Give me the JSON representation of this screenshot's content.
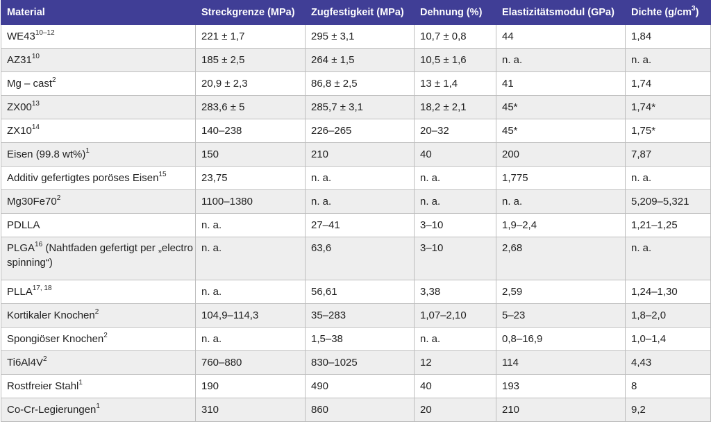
{
  "headers": [
    {
      "text": "Material",
      "sup": ""
    },
    {
      "text": "Streckgrenze (MPa)",
      "sup": ""
    },
    {
      "text": "Zugfestigkeit (MPa)",
      "sup": ""
    },
    {
      "text": "Dehnung (%)",
      "sup": ""
    },
    {
      "text": "Elastizitätsmodul (GPa)",
      "sup": ""
    },
    {
      "text": "Dichte (g/cm",
      "sup": "3",
      "after": ")"
    }
  ],
  "rows": [
    {
      "material": "WE43",
      "sup": "10–12",
      "extra": "",
      "cells": [
        "221 ± 1,7",
        "295 ± 3,1",
        "10,7 ± 0,8",
        "44",
        "1,84"
      ]
    },
    {
      "material": "AZ31",
      "sup": "10",
      "extra": "",
      "cells": [
        "185 ± 2,5",
        "264 ± 1,5",
        "10,5 ± 1,6",
        "n. a.",
        "n. a."
      ]
    },
    {
      "material": "Mg – cast",
      "sup": "2",
      "extra": "",
      "cells": [
        "20,9 ± 2,3",
        "86,8 ± 2,5",
        "13 ± 1,4",
        "41",
        "1,74"
      ]
    },
    {
      "material": "ZX00",
      "sup": "13",
      "extra": "",
      "cells": [
        "283,6 ± 5",
        "285,7 ± 3,1",
        "18,2 ± 2,1",
        "45*",
        "1,74*"
      ]
    },
    {
      "material": "ZX10",
      "sup": "14",
      "extra": "",
      "cells": [
        "140–238",
        "226–265",
        "20–32",
        "45*",
        "1,75*"
      ]
    },
    {
      "material": "Eisen (99.8 wt%)",
      "sup": "1",
      "extra": "",
      "cells": [
        "150",
        "210",
        "40",
        "200",
        "7,87"
      ]
    },
    {
      "material": "Additiv gefertigtes poröses Eisen",
      "sup": "15",
      "extra": "",
      "cells": [
        "23,75",
        "n. a.",
        "n. a.",
        "1,775",
        "n. a."
      ]
    },
    {
      "material": "Mg30Fe70",
      "sup": "2",
      "extra": "",
      "cells": [
        "1100–1380",
        "n. a.",
        "n. a.",
        "n. a.",
        "5,209–5,321"
      ]
    },
    {
      "material": "PDLLA",
      "sup": "",
      "extra": "",
      "cells": [
        "n. a.",
        "27–41",
        "3–10",
        "1,9–2,4",
        "1,21–1,25"
      ]
    },
    {
      "material": "PLGA",
      "sup": "16",
      "extra": " (Nahtfaden gefertigt per „electro spinning“)",
      "cells": [
        "n. a.",
        "63,6",
        "3–10",
        "2,68",
        "n. a."
      ]
    },
    {
      "material": "PLLA",
      "sup": "17, 18",
      "extra": "",
      "cells": [
        "n. a.",
        "56,61",
        "3,38",
        "2,59",
        "1,24–1,30"
      ]
    },
    {
      "material": "Kortikaler Knochen",
      "sup": "2",
      "extra": "",
      "cells": [
        "104,9–114,3",
        "35–283",
        "1,07–2,10",
        "5–23",
        "1,8–2,0"
      ]
    },
    {
      "material": "Spongiöser Knochen",
      "sup": "2",
      "extra": "",
      "cells": [
        "n. a.",
        "1,5–38",
        "n. a.",
        "0,8–16,9",
        "1,0–1,4"
      ]
    },
    {
      "material": "Ti6Al4V",
      "sup": "2",
      "extra": "",
      "cells": [
        "760–880",
        "830–1025",
        "12",
        "114",
        "4,43"
      ]
    },
    {
      "material": "Rostfreier Stahl",
      "sup": "1",
      "extra": "",
      "cells": [
        "190",
        "490",
        "40",
        "193",
        "8"
      ]
    },
    {
      "material": "Co-Cr-Legierungen",
      "sup": "1",
      "extra": "",
      "cells": [
        "310",
        "860",
        "20",
        "210",
        "9,2"
      ]
    }
  ]
}
